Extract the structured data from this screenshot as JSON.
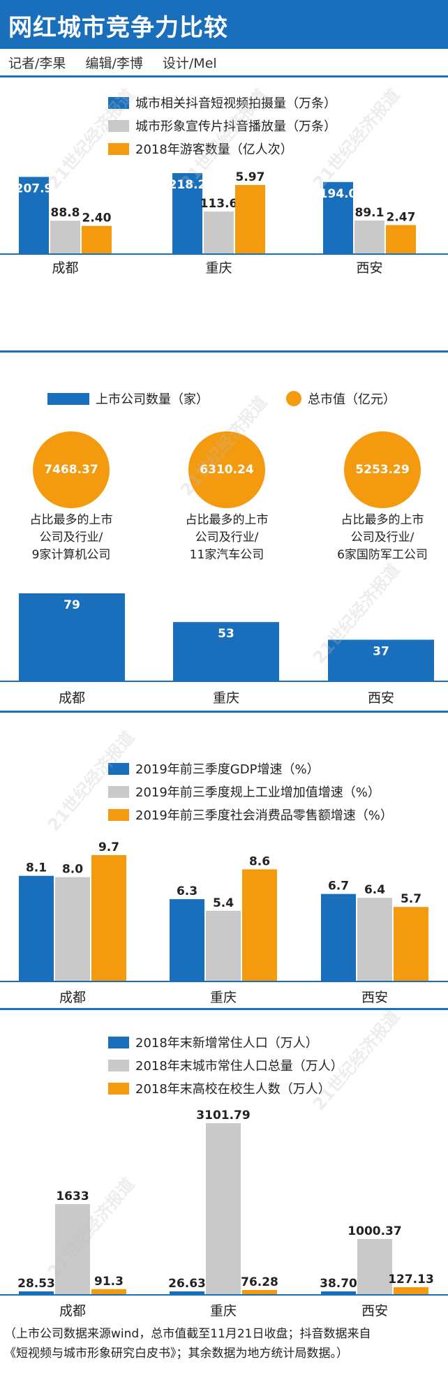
{
  "header": {
    "title": "网红城市竞争力比较"
  },
  "credits": {
    "reporter": "记者/李果",
    "editor": "编辑/李博",
    "design": "设计/Mel"
  },
  "watermark": "21世纪经济报道",
  "colors": {
    "blue": "#1a6fbc",
    "gray": "#c9c9c9",
    "orange": "#f39a0f"
  },
  "chart_data": [
    {
      "type": "bar",
      "categories": [
        "成都",
        "重庆",
        "西安"
      ],
      "series": [
        {
          "name": "城市相关抖音短视频拍摄量（万条）",
          "values": [
            207.9,
            218.2,
            194.0
          ],
          "labels": [
            "207.9",
            "218.2",
            "194.0"
          ],
          "color": "#1a6fbc"
        },
        {
          "name": "城市形象宣传片抖音播放量（万条）",
          "values": [
            88.8,
            113.6,
            89.1
          ],
          "labels": [
            "88.8",
            "113.6",
            "89.1"
          ],
          "color": "#c9c9c9"
        },
        {
          "name": "2018年游客数量（亿人次）",
          "values": [
            2.4,
            5.97,
            2.47
          ],
          "labels": [
            "2.40",
            "5.97",
            "2.47"
          ],
          "color": "#f39a0f"
        }
      ]
    },
    {
      "type": "bar",
      "categories": [
        "成都",
        "重庆",
        "西安"
      ],
      "series": [
        {
          "name": "上市公司数量（家）",
          "values": [
            79,
            53,
            37
          ],
          "labels": [
            "79",
            "53",
            "37"
          ],
          "color": "#1a6fbc"
        }
      ],
      "bubbles": {
        "name": "总市值（亿元）",
        "values": [
          "7468.37",
          "6310.24",
          "5253.29"
        ]
      },
      "notes": [
        [
          "占比最多的上市",
          "公司及行业/",
          "9家计算机公司"
        ],
        [
          "占比最多的上市",
          "公司及行业/",
          "11家汽车公司"
        ],
        [
          "占比最多的上市",
          "公司及行业/",
          "6家国防军工公司"
        ]
      ]
    },
    {
      "type": "bar",
      "categories": [
        "成都",
        "重庆",
        "西安"
      ],
      "series": [
        {
          "name": "2019年前三季度GDP增速（%）",
          "values": [
            8.1,
            6.3,
            6.7
          ],
          "labels": [
            "8.1",
            "6.3",
            "6.7"
          ],
          "color": "#1a6fbc"
        },
        {
          "name": "2019年前三季度规上工业增加值增速（%）",
          "values": [
            8.0,
            5.4,
            6.4
          ],
          "labels": [
            "8.0",
            "5.4",
            "6.4"
          ],
          "color": "#c9c9c9"
        },
        {
          "name": "2019年前三季度社会消费品零售额增速（%）",
          "values": [
            9.7,
            8.6,
            5.7
          ],
          "labels": [
            "9.7",
            "8.6",
            "5.7"
          ],
          "color": "#f39a0f"
        }
      ]
    },
    {
      "type": "bar",
      "categories": [
        "成都",
        "重庆",
        "西安"
      ],
      "series": [
        {
          "name": "2018年末新增常住人口（万人）",
          "values": [
            28.53,
            26.63,
            38.7
          ],
          "labels": [
            "28.53",
            "26.63",
            "38.70"
          ],
          "color": "#1a6fbc"
        },
        {
          "name": "2018年末城市常住人口总量（万人）",
          "values": [
            1633,
            3101.79,
            1000.37
          ],
          "labels": [
            "1633",
            "3101.79",
            "1000.37"
          ],
          "color": "#c9c9c9"
        },
        {
          "name": "2018年末高校在校生人数（万人）",
          "values": [
            91.3,
            76.28,
            127.13
          ],
          "labels": [
            "91.3",
            "76.28",
            "127.13"
          ],
          "color": "#f39a0f"
        }
      ]
    }
  ],
  "footnote": {
    "line1": "（上市公司数据来源wind，总市值截至11月21日收盘；抖音数据来自",
    "line2": "《短视频与城市形象研究白皮书》；其余数据为地方统计局数据。）"
  }
}
